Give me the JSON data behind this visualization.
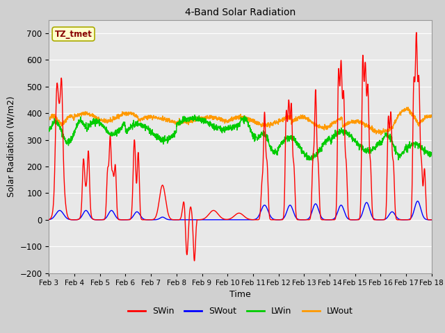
{
  "title": "4-Band Solar Radiation",
  "xlabel": "Time",
  "ylabel": "Solar Radiation (W/m2)",
  "annotation": "TZ_tmet",
  "ylim": [
    -200,
    750
  ],
  "yticks": [
    -200,
    -100,
    0,
    100,
    200,
    300,
    400,
    500,
    600,
    700
  ],
  "x_labels": [
    "Feb 3",
    "Feb 4",
    "Feb 5",
    "Feb 6",
    "Feb 7",
    "Feb 8",
    "Feb 9",
    "Feb 10",
    "Feb 11",
    "Feb 12",
    "Feb 13",
    "Feb 14",
    "Feb 15",
    "Feb 16",
    "Feb 17",
    "Feb 18"
  ],
  "colors": {
    "SWin": "#ff0000",
    "SWout": "#0000ff",
    "LWin": "#00cc00",
    "LWout": "#ff9900"
  },
  "plot_bg": "#e8e8e8",
  "fig_bg": "#d0d0d0",
  "grid_color": "#ffffff",
  "annotation_bg": "#ffffcc",
  "annotation_fg": "#880000",
  "annotation_border": "#aaaa00",
  "linewidth": 1.0
}
